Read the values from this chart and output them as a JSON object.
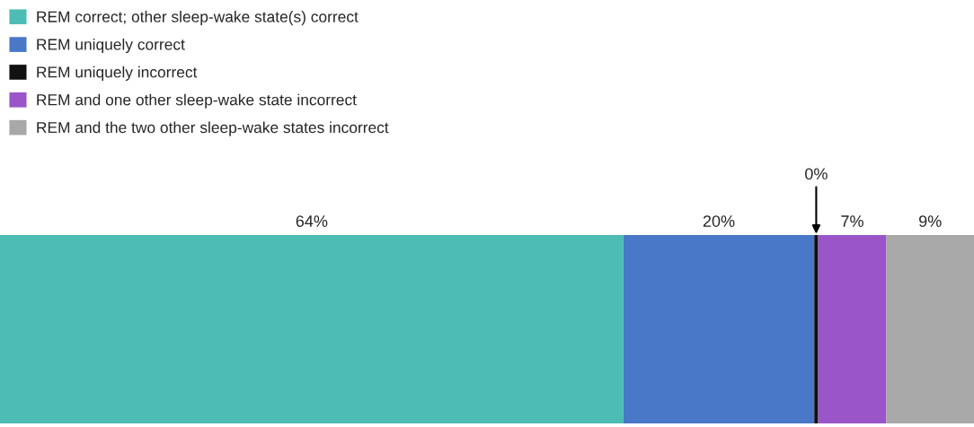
{
  "chart_data": {
    "type": "bar",
    "orientation": "horizontal",
    "stacked": true,
    "legend": "top left",
    "categories": [
      null
    ],
    "series": [
      {
        "name": "REM correct; other sleep-wake state(s) correct",
        "color": "#4dbcb4",
        "values": [
          64.0
        ],
        "value_labels": [
          "64%"
        ]
      },
      {
        "name": "REM uniquely correct",
        "color": "#4a78c8",
        "values": [
          19.6
        ],
        "value_labels": [
          "20%"
        ]
      },
      {
        "name": "REM uniquely incorrect",
        "color": "#111111",
        "values": [
          0.4
        ],
        "value_labels": [
          "0%"
        ]
      },
      {
        "name": "REM and one other sleep-wake state incorrect",
        "color": "#9a55c8",
        "values": [
          7.0
        ],
        "value_labels": [
          "7%"
        ]
      },
      {
        "name": "REM and the two other sleep-wake states incorrect",
        "color": "#a8a8a8",
        "values": [
          9.0
        ],
        "value_labels": [
          "9%"
        ]
      }
    ]
  }
}
